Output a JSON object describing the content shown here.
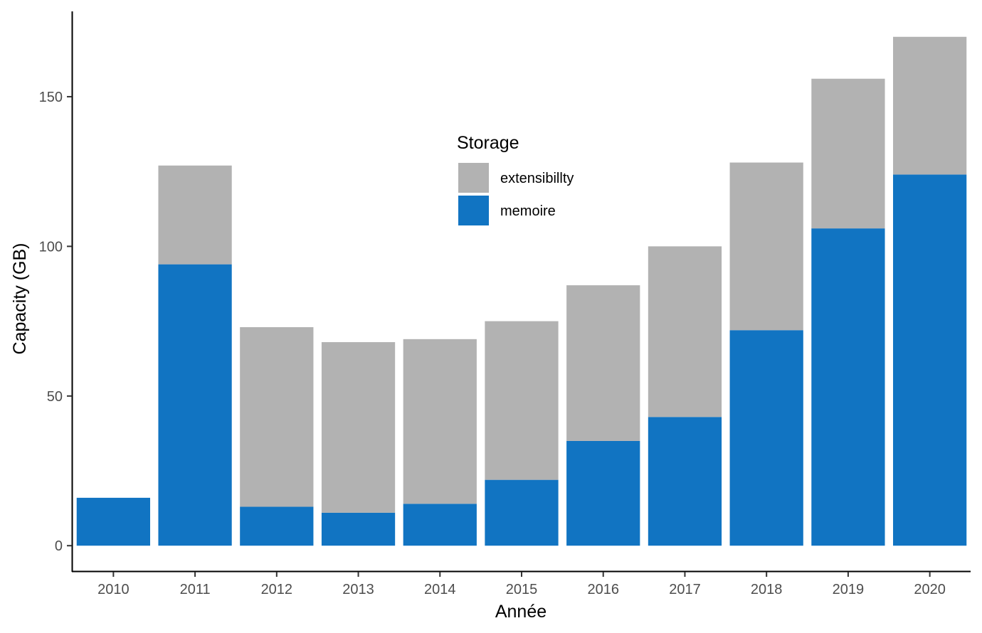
{
  "chart_data": {
    "type": "bar",
    "stacked": true,
    "title": "",
    "xlabel": "Année",
    "ylabel": "Capacity (GB)",
    "categories": [
      "2010",
      "2011",
      "2012",
      "2013",
      "2014",
      "2015",
      "2016",
      "2017",
      "2018",
      "2019",
      "2020"
    ],
    "series": [
      {
        "name": "memoire",
        "color": "#1174C2",
        "values": [
          16,
          94,
          13,
          11,
          14,
          22,
          35,
          43,
          72,
          106,
          124
        ]
      },
      {
        "name": "extensibillty",
        "color": "#B2B2B2",
        "values": [
          0,
          33,
          60,
          57,
          55,
          53,
          52,
          57,
          56,
          50,
          46
        ]
      }
    ],
    "yticks": [
      0,
      50,
      100,
      150
    ],
    "ylim": [
      -8.5,
      178.5
    ],
    "grid": false,
    "legend": {
      "title": "Storage",
      "position": "inside-top-center",
      "entries": [
        {
          "label": "extensibillty",
          "color": "#B2B2B2"
        },
        {
          "label": "memoire",
          "color": "#1174C2"
        }
      ]
    }
  }
}
